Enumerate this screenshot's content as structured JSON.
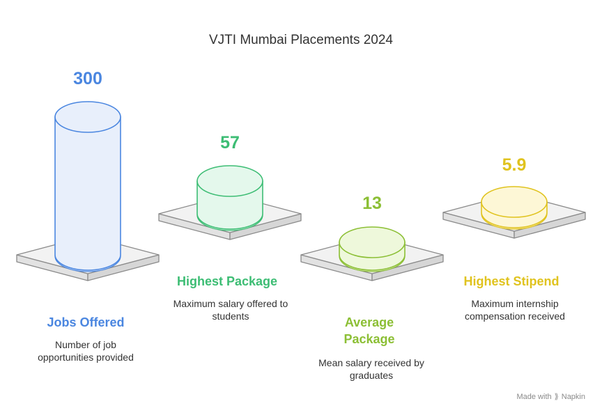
{
  "title": "VJTI Mumbai Placements 2024",
  "items": [
    {
      "value": "300",
      "label": "Jobs Offered",
      "description": "Number of job opportunities provided",
      "color": "#4a86e0",
      "fill": "#e8effb",
      "stroke": "#4a86e0"
    },
    {
      "value": "57",
      "label": "Highest Package",
      "description": "Maximum salary offered to students",
      "color": "#3dbd74",
      "fill": "#e4f8ec",
      "stroke": "#3dbd74"
    },
    {
      "value": "13",
      "label": "Average Package",
      "description": "Mean salary received by graduates",
      "color": "#8cbf35",
      "fill": "#eef8db",
      "stroke": "#8cbf35"
    },
    {
      "value": "5.9",
      "label": "Highest Stipend",
      "description": "Maximum internship compensation received",
      "color": "#e0c31e",
      "fill": "#fdf7d6",
      "stroke": "#e0c31e"
    }
  ],
  "footer": {
    "made_with": "Made with",
    "brand": "Napkin",
    "brand_icon": "napkin-logo-icon"
  }
}
